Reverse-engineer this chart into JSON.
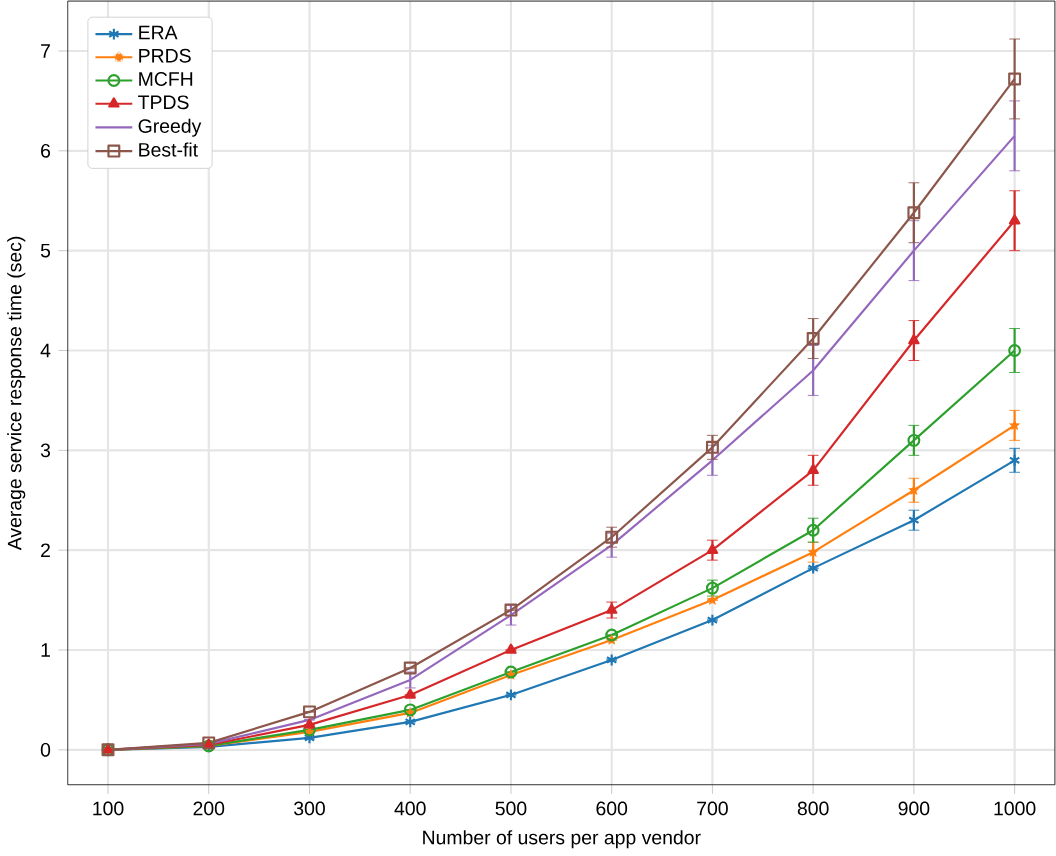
{
  "chart_data": {
    "type": "line",
    "xlabel": "Number of users per app vendor",
    "ylabel": "Average service response time (sec)",
    "x": [
      100,
      200,
      300,
      400,
      500,
      600,
      700,
      800,
      900,
      1000
    ],
    "xlim": [
      60,
      1040
    ],
    "ylim": [
      -0.35,
      7.5
    ],
    "xticks": [
      100,
      200,
      300,
      400,
      500,
      600,
      700,
      800,
      900,
      1000
    ],
    "yticks": [
      0,
      1,
      2,
      3,
      4,
      5,
      6,
      7
    ],
    "grid": true,
    "legend": "top left",
    "series": [
      {
        "name": "ERA",
        "color": "#1f77b4",
        "marker": "cross",
        "values": [
          0,
          0.03,
          0.12,
          0.28,
          0.55,
          0.9,
          1.3,
          1.82,
          2.3,
          2.9
        ],
        "errors": [
          null,
          null,
          null,
          null,
          null,
          null,
          null,
          null,
          0.1,
          0.12
        ]
      },
      {
        "name": "PRDS",
        "color": "#ff7f0e",
        "marker": "star",
        "values": [
          0,
          0.04,
          0.18,
          0.37,
          0.75,
          1.1,
          1.5,
          1.98,
          2.6,
          3.25
        ],
        "errors": [
          null,
          null,
          null,
          null,
          null,
          null,
          null,
          0.1,
          0.12,
          0.15
        ]
      },
      {
        "name": "MCFH",
        "color": "#2ca02c",
        "marker": "circle",
        "values": [
          0,
          0.04,
          0.2,
          0.4,
          0.78,
          1.15,
          1.62,
          2.2,
          3.1,
          4.0
        ],
        "errors": [
          null,
          null,
          null,
          null,
          null,
          null,
          0.08,
          0.12,
          0.15,
          0.22
        ]
      },
      {
        "name": "TPDS",
        "color": "#d62728",
        "marker": "triangle",
        "values": [
          0,
          0.05,
          0.25,
          0.55,
          1.0,
          1.4,
          2.0,
          2.8,
          4.1,
          5.3
        ],
        "errors": [
          null,
          null,
          null,
          null,
          null,
          0.08,
          0.1,
          0.15,
          0.2,
          0.3
        ]
      },
      {
        "name": "Greedy",
        "color": "#9467bd",
        "marker": "none",
        "values": [
          0,
          0.06,
          0.3,
          0.7,
          1.35,
          2.05,
          2.9,
          3.8,
          5.0,
          6.15
        ],
        "errors": [
          null,
          null,
          null,
          0.08,
          0.1,
          0.12,
          0.15,
          0.25,
          0.3,
          0.35
        ]
      },
      {
        "name": "Best-fit",
        "color": "#8c564b",
        "marker": "square",
        "values": [
          0,
          0.07,
          0.38,
          0.82,
          1.4,
          2.13,
          3.03,
          4.12,
          5.38,
          6.72
        ],
        "errors": [
          null,
          null,
          null,
          null,
          null,
          0.1,
          0.12,
          0.2,
          0.3,
          0.4
        ]
      }
    ]
  }
}
